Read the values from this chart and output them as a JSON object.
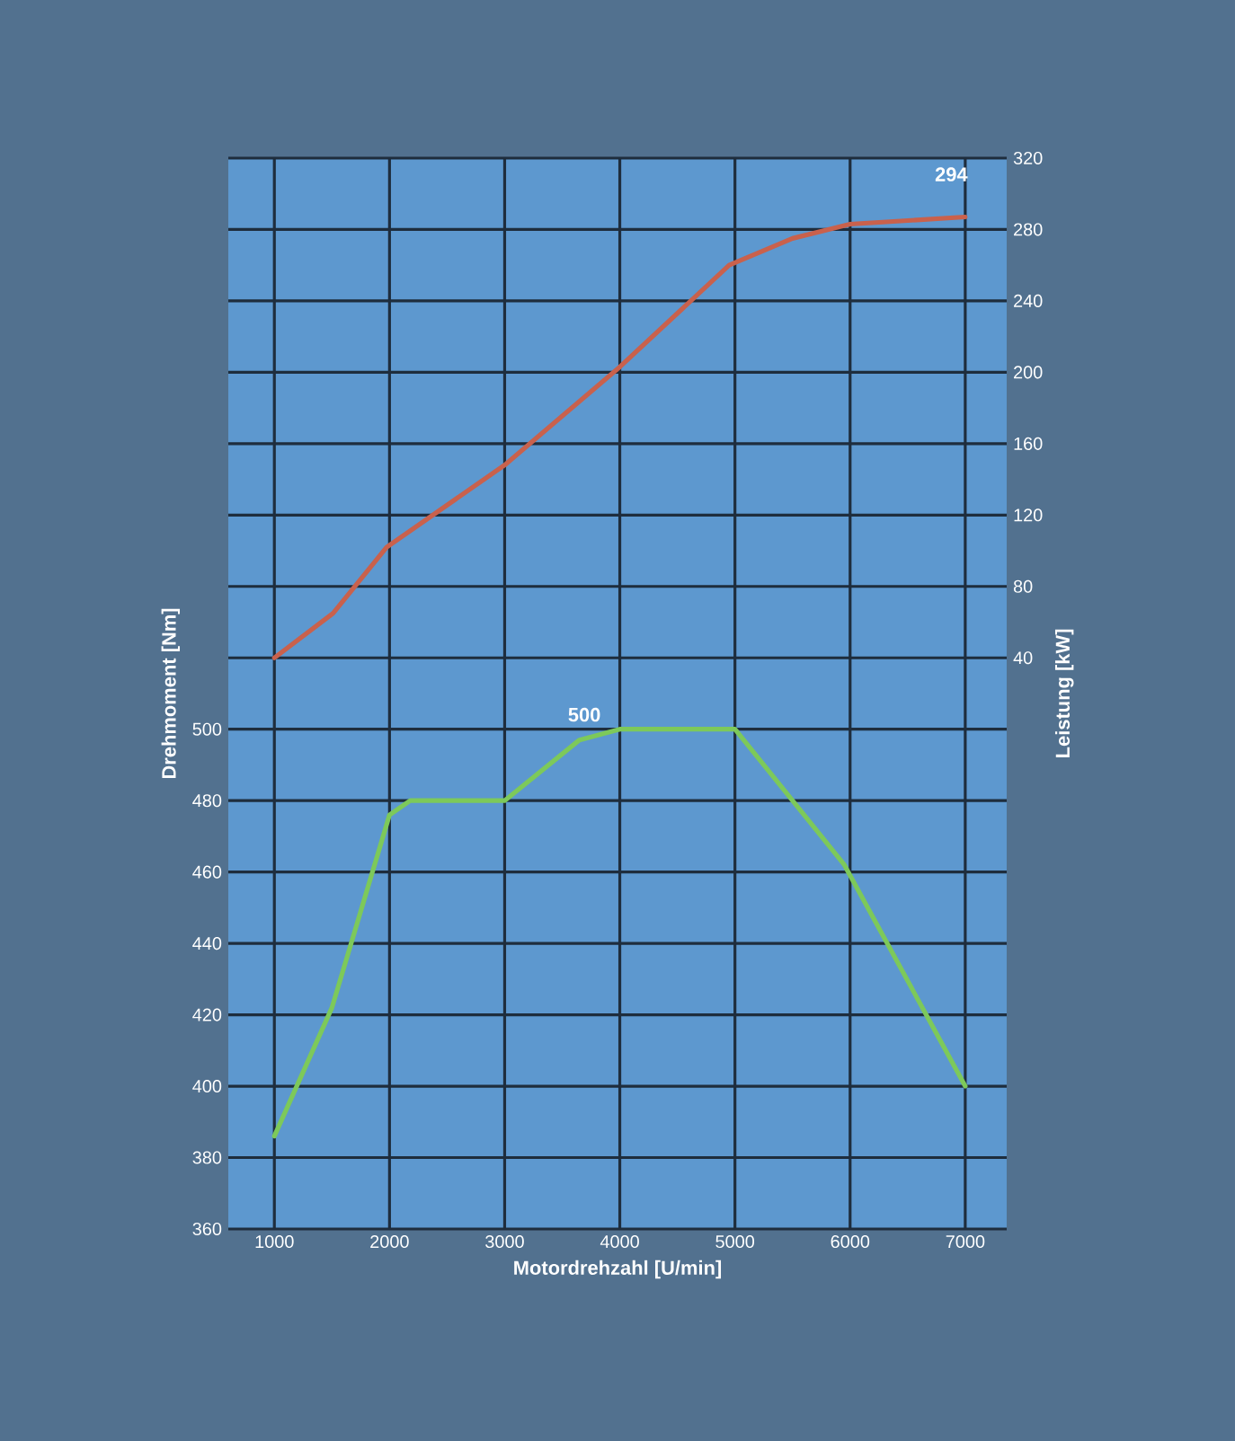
{
  "chart_data": {
    "type": "line",
    "xlabel": "Motordrehzahl [U/min]",
    "ylabel": "Drehmoment [Nm]",
    "y2label": "Leistung [kW]",
    "series": [
      {
        "color": "#7dc95a",
        "x": [
          1000,
          1500,
          2000,
          2180,
          3000,
          3650,
          4000,
          5000,
          5950,
          7000
        ],
        "values": [
          386,
          422,
          476,
          480,
          480,
          497,
          500,
          500,
          462,
          400
        ]
      },
      {
        "color": "#c9614c",
        "axis": "y2",
        "x": [
          1000,
          1510,
          1975,
          3000,
          4000,
          4950,
          5500,
          6000,
          7000
        ],
        "values": [
          40,
          65,
          102,
          148,
          203,
          260,
          275,
          283,
          287
        ]
      }
    ],
    "xlim": [
      600,
      7360
    ],
    "xticks": [
      1000,
      2000,
      3000,
      4000,
      5000,
      6000,
      7000
    ],
    "ylim": [
      360,
      660
    ],
    "yticks": [
      360,
      380,
      400,
      420,
      440,
      460,
      480,
      500
    ],
    "y2lim": [
      -280,
      320
    ],
    "y2ticks": [
      40,
      80,
      120,
      160,
      200,
      240,
      280,
      320
    ],
    "grid": true,
    "annotations": [
      {
        "text": "500",
        "x": 3900,
        "y": 500
      },
      "294"
    ]
  }
}
